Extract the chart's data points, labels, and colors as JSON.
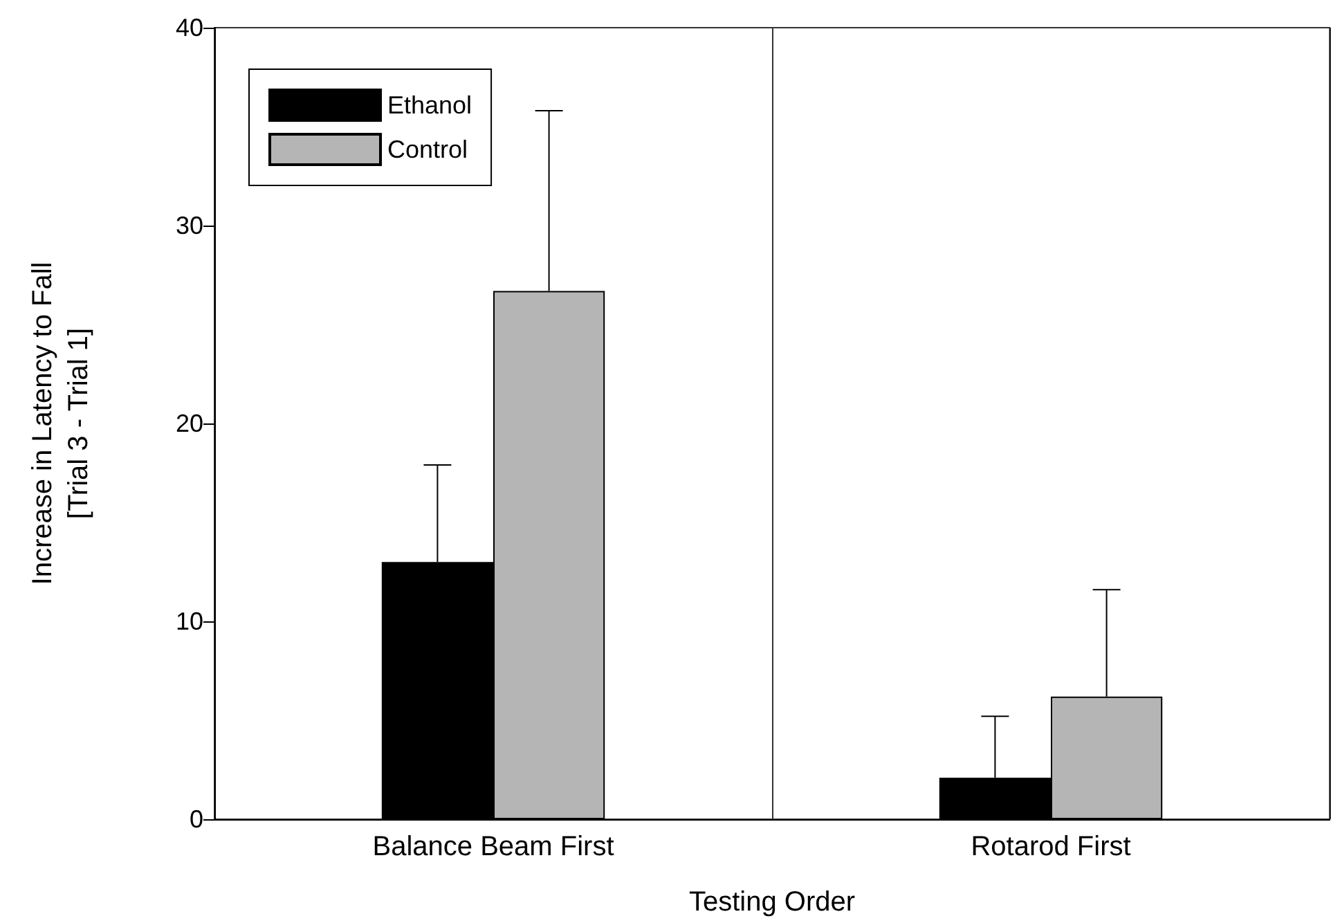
{
  "chart_data": {
    "type": "bar",
    "xlabel": "Testing Order",
    "ylabel": "Increase in Latency to Fall\n[Trial 3 - Trial 1]",
    "categories": [
      "Balance Beam First",
      "Rotarod First"
    ],
    "series": [
      {
        "name": "Ethanol",
        "color": "#000000",
        "values": [
          13.0,
          2.1
        ],
        "errors": [
          [
            13.0,
            17.9
          ],
          [
            2.1,
            5.2
          ]
        ]
      },
      {
        "name": "Control",
        "color": "#b5b5b5",
        "values": [
          26.7,
          6.2
        ],
        "errors": [
          [
            26.7,
            35.8
          ],
          [
            6.2,
            11.6
          ]
        ]
      }
    ],
    "ylim": [
      0,
      40
    ],
    "yticks": [
      0,
      10,
      20,
      30,
      40
    ],
    "grid": "x",
    "legend": "top left"
  }
}
